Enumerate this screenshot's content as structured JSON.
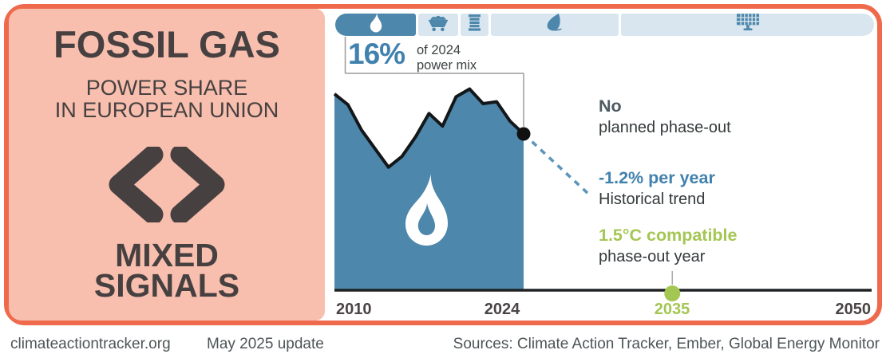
{
  "header": {
    "title": "FOSSIL GAS",
    "subtitle": [
      "POWER SHARE",
      "IN EUROPEAN UNION"
    ],
    "rating": [
      "MIXED",
      "SIGNALS"
    ],
    "rating_icon": "mixed-signals-chevrons-icon"
  },
  "tabs": [
    {
      "id": "gas",
      "icon": "flame-icon",
      "active": true
    },
    {
      "id": "coal",
      "icon": "coal-cart-icon",
      "active": false
    },
    {
      "id": "oil",
      "icon": "oil-barrel-icon",
      "active": false
    },
    {
      "id": "bio",
      "icon": "leaf-icon",
      "active": false
    },
    {
      "id": "solar",
      "icon": "solar-panel-icon",
      "active": false
    }
  ],
  "callout": {
    "value": "16%",
    "caption": [
      "of 2024",
      "power mix"
    ]
  },
  "annotations": [
    {
      "title": "No",
      "subtitle": "planned phase-out"
    },
    {
      "title": "-1.2% per year",
      "subtitle": "Historical trend"
    },
    {
      "title": "1.5°C compatible",
      "subtitle": "phase-out year"
    }
  ],
  "footer": {
    "site": "climateactiontracker.org",
    "update": "May 2025 update",
    "sources": "Sources: Climate Action Tracker, Ember, Global Energy Monitor"
  },
  "colors": {
    "accent_orange": "#ef6a4c",
    "panel_salmon": "#f8bfae",
    "brand_blue": "#4d87ab",
    "tab_light_blue": "#d9e6ef",
    "green": "#a4c653",
    "blue_text": "#4181ae",
    "dark_text": "#3d4344"
  },
  "chart_data": {
    "type": "area",
    "title": "Fossil gas power share in European Union",
    "unit": "% of power mix",
    "x": [
      2010,
      2011,
      2012,
      2013,
      2014,
      2015,
      2016,
      2017,
      2018,
      2019,
      2020,
      2021,
      2022,
      2023,
      2024
    ],
    "values": [
      20.1,
      19.0,
      16.4,
      14.5,
      12.6,
      13.7,
      15.7,
      18.1,
      16.8,
      19.8,
      20.6,
      19.1,
      19.3,
      17.3,
      16.0
    ],
    "highlight_point": {
      "year": 2024,
      "value": 16.0,
      "label": "16% of 2024 power mix"
    },
    "projection": {
      "start_year": 2024,
      "start_value": 16.0,
      "end_year": 2029,
      "end_value": 9.6,
      "trend": "-1.2% per year",
      "style": "dashed"
    },
    "compatible_marker": {
      "year": 2035,
      "label": "2035"
    },
    "x_ticks": [
      "2010",
      "2024",
      "2035",
      "2050"
    ],
    "xlim": [
      2010,
      2050
    ],
    "ylim": [
      0,
      22.4
    ],
    "grid": false,
    "legend": "none"
  }
}
